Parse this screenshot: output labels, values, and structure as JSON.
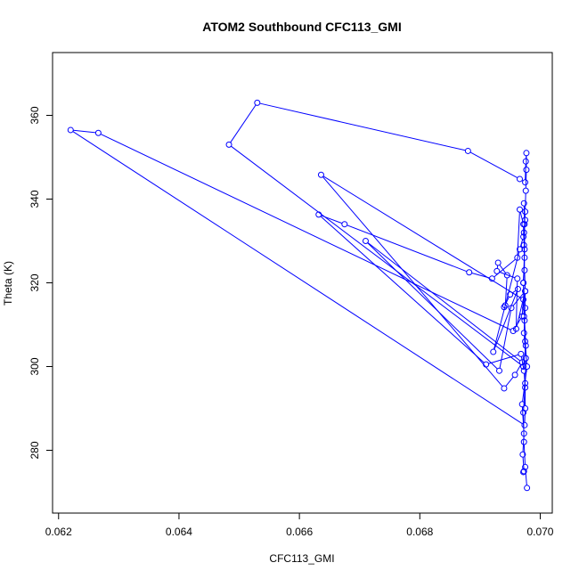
{
  "chart_data": {
    "type": "line",
    "title": "ATOM2 Southbound CFC113_GMI",
    "xlabel": "CFC113_GMI",
    "ylabel": "Theta (K)",
    "xlim": [
      0.0619,
      0.0702
    ],
    "ylim": [
      265,
      375
    ],
    "xticks": [
      0.062,
      0.064,
      0.066,
      0.068,
      0.07
    ],
    "xtick_labels": [
      "0.062",
      "0.064",
      "0.066",
      "0.068",
      "0.070"
    ],
    "yticks": [
      280,
      300,
      320,
      340,
      360
    ],
    "ytick_labels": [
      "280",
      "300",
      "320",
      "340",
      "360"
    ],
    "series_color": "#0000ff",
    "markers": "open-circle",
    "grid": false,
    "series": [
      {
        "points": [
          [
            0.06978,
            271.0
          ],
          [
            0.06975,
            276.0
          ],
          [
            0.06973,
            282.0
          ],
          [
            0.06972,
            289.0
          ],
          [
            0.06975,
            296.0
          ],
          [
            0.06976,
            302.0
          ],
          [
            0.06973,
            308.0
          ],
          [
            0.06975,
            314.0
          ],
          [
            0.06972,
            320.0
          ],
          [
            0.06974,
            326.0
          ],
          [
            0.06973,
            332.0
          ],
          [
            0.06975,
            337.0
          ],
          [
            0.06976,
            342.0
          ],
          [
            0.06977,
            347.0
          ],
          [
            0.06977,
            351.0
          ],
          [
            0.06976,
            349.0
          ],
          [
            0.06975,
            344.0
          ],
          [
            0.06966,
            344.8
          ],
          [
            0.0688,
            351.5
          ],
          [
            0.0653,
            363.0
          ],
          [
            0.06483,
            353.0
          ],
          [
            0.06972,
            300.0
          ],
          [
            0.06976,
            305.0
          ],
          [
            0.06974,
            311.0
          ],
          [
            0.06975,
            318.0
          ],
          [
            0.06974,
            323.0
          ],
          [
            0.06973,
            329.0
          ],
          [
            0.06972,
            334.0
          ],
          [
            0.06966,
            337.5
          ],
          [
            0.06962,
            326.0
          ],
          [
            0.0692,
            321.0
          ],
          [
            0.06882,
            322.5
          ],
          [
            0.06675,
            334.0
          ],
          [
            0.06632,
            336.3
          ],
          [
            0.0691,
            300.5
          ],
          [
            0.06968,
            303.0
          ],
          [
            0.06973,
            299.0
          ],
          [
            0.06975,
            295.0
          ],
          [
            0.06975,
            290.0
          ],
          [
            0.06974,
            286.0
          ],
          [
            0.0622,
            356.5
          ],
          [
            0.06266,
            355.8
          ],
          [
            0.06955,
            308.5
          ],
          [
            0.0697,
            312.0
          ],
          [
            0.06972,
            316.0
          ],
          [
            0.06636,
            345.8
          ],
          [
            0.0694,
            294.8
          ],
          [
            0.06958,
            298.0
          ],
          [
            0.0697,
            301.0
          ],
          [
            0.0671,
            330.0
          ],
          [
            0.06932,
            299.0
          ],
          [
            0.06952,
            314.0
          ],
          [
            0.06975,
            318.0
          ],
          [
            0.0696,
            309.0
          ],
          [
            0.06962,
            321.0
          ],
          [
            0.06928,
            322.8
          ],
          [
            0.0693,
            324.8
          ],
          [
            0.06945,
            321.8
          ],
          [
            0.06942,
            314.6
          ],
          [
            0.0694,
            314.2
          ],
          [
            0.0695,
            317.2
          ],
          [
            0.06963,
            318.5
          ],
          [
            0.06922,
            303.5
          ],
          [
            0.06966,
            328.0
          ],
          [
            0.06972,
            331.0
          ],
          [
            0.06975,
            335.0
          ],
          [
            0.06973,
            339.0
          ],
          [
            0.06974,
            334.0
          ],
          [
            0.06974,
            328.0
          ],
          [
            0.06972,
            320.0
          ],
          [
            0.06973,
            312.0
          ],
          [
            0.06975,
            306.0
          ],
          [
            0.06978,
            300.0
          ],
          [
            0.0697,
            291.0
          ],
          [
            0.06973,
            284.0
          ],
          [
            0.06971,
            279.0
          ],
          [
            0.06973,
            275.0
          ],
          [
            0.06972,
            274.8
          ]
        ]
      }
    ]
  }
}
